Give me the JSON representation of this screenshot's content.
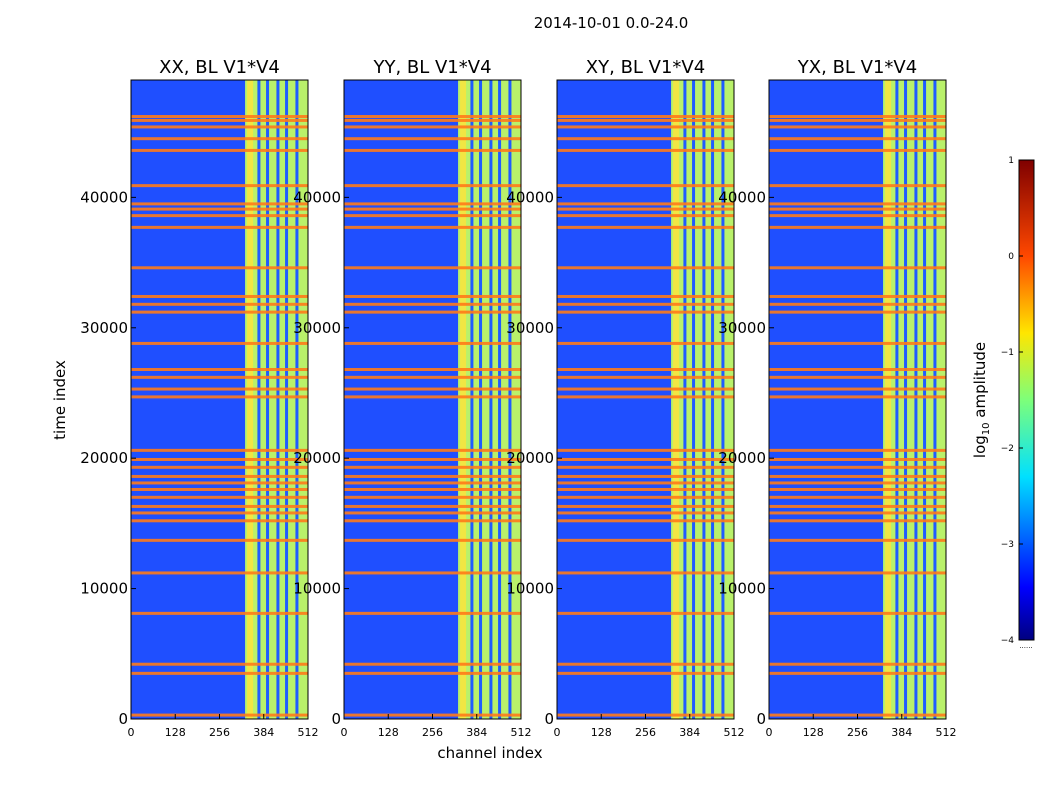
{
  "suptitle": "2014-10-01 0.0-24.0",
  "chart_data": {
    "type": "heatmap",
    "x_label": "channel index",
    "y_label": "time index",
    "x_range": [
      0,
      512
    ],
    "y_range": [
      0,
      49000
    ],
    "x_ticks": [
      0,
      128,
      256,
      384,
      512
    ],
    "y_ticks": [
      0,
      10000,
      20000,
      30000,
      40000
    ],
    "panels": [
      {
        "title": "XX, BL V1*V4",
        "polarization": "XX"
      },
      {
        "title": "YY, BL V1*V4",
        "polarization": "YY"
      },
      {
        "title": "XY, BL V1*V4",
        "polarization": "XY"
      },
      {
        "title": "YX, BL V1*V4",
        "polarization": "YX"
      }
    ],
    "colorbar": {
      "label_prefix": "log",
      "label_sub": "10",
      "label_suffix": " amplitude",
      "range": [
        -4,
        1
      ],
      "ticks": [
        1,
        0,
        -1,
        -2,
        -3,
        -4
      ],
      "colormap": "jet",
      "dotted_note": "......"
    },
    "bright_channel_band": [
      330,
      512
    ],
    "channel_gaps": [
      370,
      395,
      425,
      450,
      480
    ],
    "flagged_time_rows": [
      300,
      3500,
      4200,
      8100,
      11200,
      13700,
      15200,
      15800,
      16300,
      17000,
      17600,
      18100,
      18600,
      19300,
      19900,
      20600,
      24700,
      25300,
      26200,
      26800,
      28800,
      31200,
      31800,
      32400,
      34600,
      37700,
      38600,
      39100,
      39500,
      40900,
      43600,
      44500,
      45400,
      45900,
      46200
    ]
  }
}
